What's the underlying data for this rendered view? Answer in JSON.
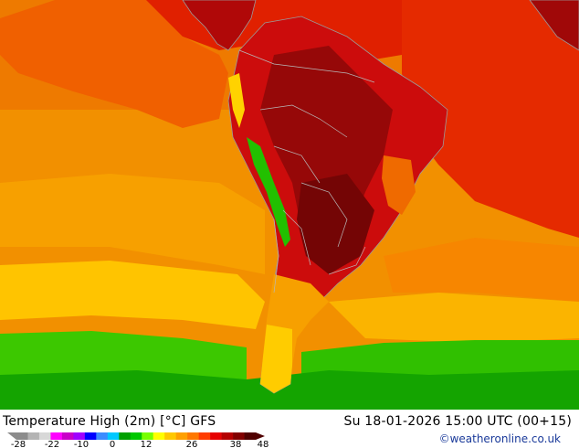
{
  "title": "Temperature High (2m) [°C] GFS",
  "run_info": "Su 18-01-2026 15:00 UTC (00+15)",
  "credit": "©weatheronline.co.uk",
  "legend": {
    "ticks": [
      "-28",
      "-22",
      "-10",
      "0",
      "12",
      "26",
      "38",
      "48"
    ],
    "colors": [
      "#8c8c8c",
      "#b4b4b4",
      "#d8d8d8",
      "#ff00ff",
      "#c800c8",
      "#a000ff",
      "#0000ff",
      "#3c8cff",
      "#00c8ff",
      "#00a000",
      "#00c800",
      "#78ff00",
      "#ffff00",
      "#ffc800",
      "#ffa000",
      "#ff7800",
      "#ff3c00",
      "#e60000",
      "#b40000",
      "#820000",
      "#500000"
    ]
  },
  "map": {
    "colors": {
      "ocean_hot": "#ee6a00",
      "ocean_warm": "#f78c00",
      "ocean_mild": "#fbb000",
      "ocean_yellow": "#ffd400",
      "ocean_green": "#3ccc00",
      "ocean_dkgreen": "#16a800",
      "land_red": "#d01010",
      "land_dark": "#9a0a0a",
      "land_darker": "#7a0606",
      "coast": "#9a9a9a"
    }
  }
}
